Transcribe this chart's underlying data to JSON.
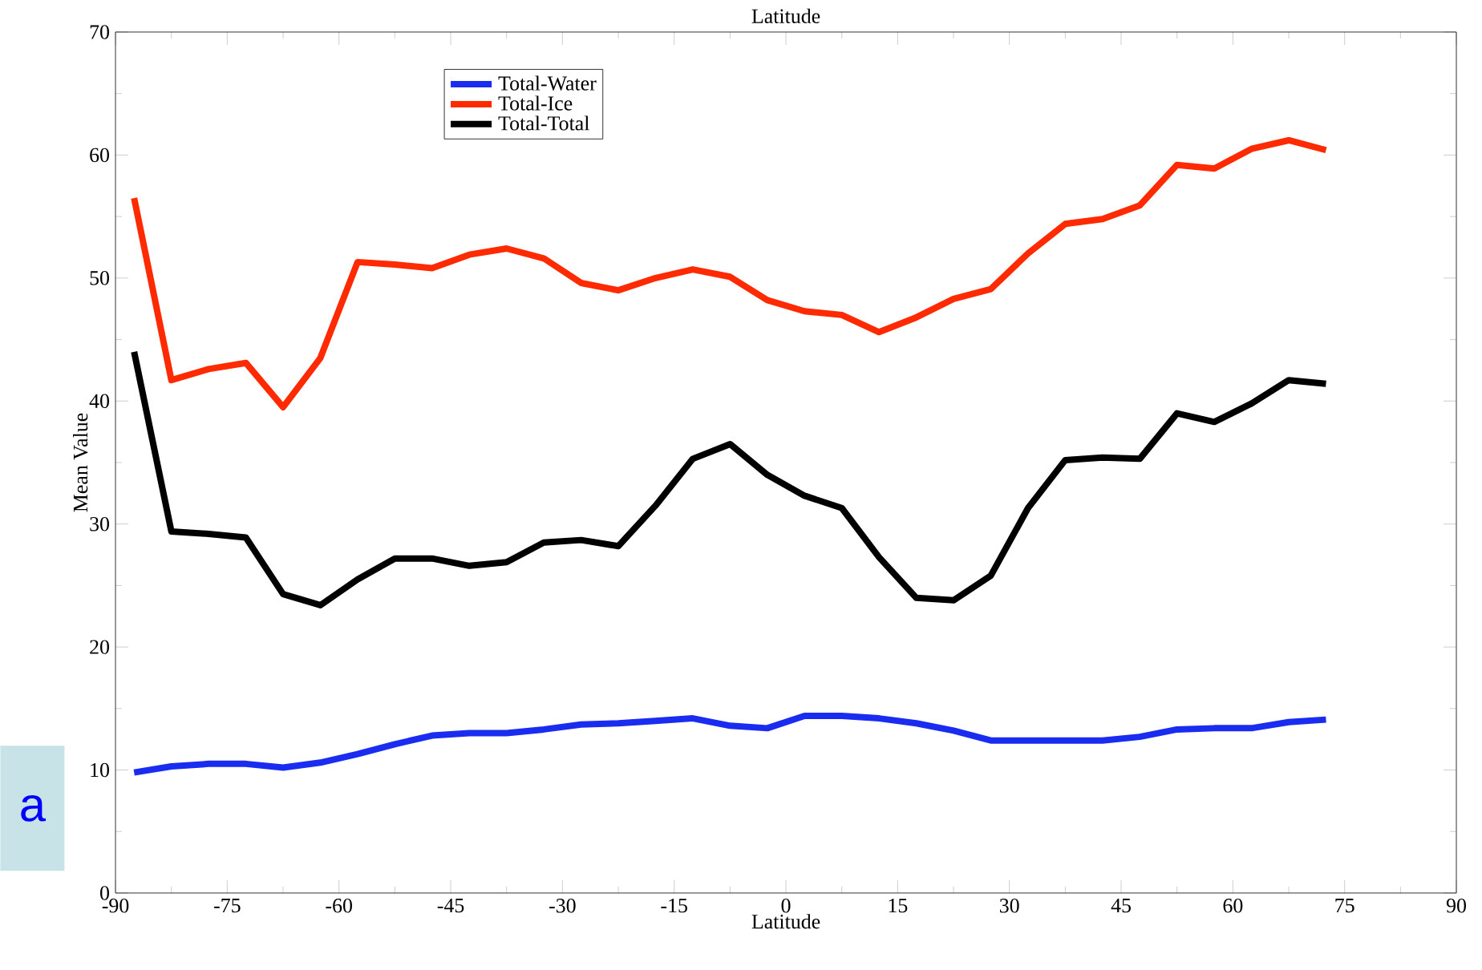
{
  "chart_data": {
    "type": "line",
    "title": "Latitude",
    "xlabel": "Latitude",
    "ylabel": "Mean Value",
    "annotations": [
      "a"
    ],
    "x": [
      -87.5,
      -82.5,
      -77.5,
      -72.5,
      -67.5,
      -62.5,
      -57.5,
      -52.5,
      -47.5,
      -42.5,
      -37.5,
      -32.5,
      -27.5,
      -22.5,
      -17.5,
      -12.5,
      -7.5,
      -2.5,
      2.5,
      7.5,
      12.5,
      17.5,
      22.5,
      27.5,
      32.5,
      37.5,
      42.5,
      47.5,
      52.5,
      57.5,
      62.5,
      67.5,
      72.5
    ],
    "series": [
      {
        "name": "Total-Water",
        "color": "#1a2cf0",
        "values": [
          9.8,
          10.3,
          10.5,
          10.5,
          10.2,
          10.6,
          11.3,
          12.1,
          12.8,
          13.0,
          13.0,
          13.3,
          13.7,
          13.8,
          14.0,
          14.2,
          13.6,
          13.4,
          14.4,
          14.4,
          14.2,
          13.8,
          13.2,
          12.4,
          12.4,
          12.4,
          12.4,
          12.7,
          13.3,
          13.4,
          13.4,
          13.9,
          14.1
        ]
      },
      {
        "name": "Total-Ice",
        "color": "#ff2a00",
        "values": [
          56.5,
          41.7,
          42.6,
          43.1,
          39.5,
          43.5,
          51.3,
          51.1,
          50.8,
          51.9,
          52.4,
          51.6,
          49.6,
          49.0,
          50.0,
          50.7,
          50.1,
          48.2,
          47.3,
          47.0,
          45.6,
          46.8,
          48.3,
          49.1,
          52.0,
          54.4,
          54.8,
          55.9,
          59.2,
          58.9,
          60.5,
          61.2,
          60.4
        ]
      },
      {
        "name": "Total-Total",
        "color": "#000000",
        "values": [
          44.0,
          29.4,
          29.2,
          28.9,
          24.3,
          23.4,
          25.5,
          27.2,
          27.2,
          26.6,
          26.9,
          28.5,
          28.7,
          28.2,
          31.5,
          35.3,
          36.5,
          34.0,
          32.3,
          31.3,
          27.3,
          24.0,
          23.8,
          25.8,
          31.3,
          35.2,
          35.4,
          35.3,
          39.0,
          38.3,
          39.8,
          41.7,
          41.4
        ]
      }
    ],
    "xlim": [
      -90,
      90
    ],
    "xticks": [
      -90,
      -75,
      -60,
      -45,
      -30,
      -15,
      0,
      15,
      30,
      45,
      60,
      75,
      90
    ],
    "ylim": [
      0,
      70
    ],
    "yticks": [
      0,
      10,
      20,
      30,
      40,
      50,
      60,
      70
    ],
    "grid": false,
    "legend": "top left",
    "marker": "none",
    "line_style": "solid"
  }
}
